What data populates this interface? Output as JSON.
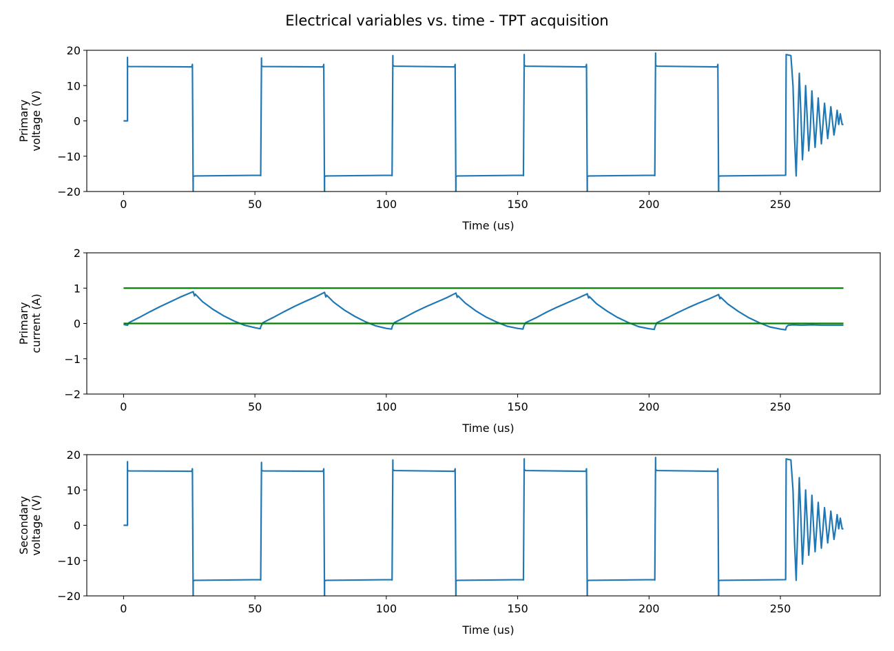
{
  "figure": {
    "title": "Electrical variables vs. time - TPT acquisition"
  },
  "chart_data": [
    {
      "type": "line",
      "xlabel": "Time (us)",
      "ylabel_lines": [
        "Primary",
        "voltage (V)"
      ],
      "xlim": [
        -14,
        288
      ],
      "ylim": [
        -20,
        20
      ],
      "xticks": [
        0,
        50,
        100,
        150,
        200,
        250
      ],
      "yticks": [
        -20,
        -10,
        0,
        10,
        20
      ],
      "grid": false,
      "series": [
        {
          "color": "#1f77b4",
          "x": [
            0,
            1.5,
            1.5,
            1.5,
            2,
            26,
            26.2,
            26.5,
            26.5,
            27,
            52,
            52.2,
            52.5,
            52.5,
            53,
            76,
            76.2,
            76.5,
            76.5,
            77,
            102,
            102.2,
            102.5,
            102.5,
            103,
            126,
            126.2,
            126.5,
            126.5,
            127,
            152,
            152.2,
            152.5,
            152.5,
            153,
            176,
            176.2,
            176.5,
            176.5,
            177,
            202,
            202.2,
            202.5,
            202.5,
            203,
            226,
            226.2,
            226.5,
            226.5,
            227,
            252,
            252.2,
            254,
            254.8,
            255.4,
            256,
            256.6,
            257.2,
            257.8,
            258.4,
            259,
            259.6,
            260.2,
            260.8,
            261.4,
            262,
            262.6,
            263.2,
            263.8,
            264.4,
            265,
            265.6,
            266.2,
            266.8,
            267.4,
            268,
            268.6,
            269.2,
            269.8,
            270.4,
            271,
            271.6,
            272.2,
            272.8,
            273.5,
            274
          ],
          "y": [
            0,
            0,
            18,
            15.5,
            15.4,
            15.3,
            16,
            -22,
            -15.8,
            -15.6,
            -15.4,
            -15.5,
            17.8,
            15.6,
            15.4,
            15.3,
            16,
            -22,
            -15.8,
            -15.6,
            -15.4,
            -15.5,
            18.5,
            15.8,
            15.5,
            15.3,
            16,
            -22,
            -15.8,
            -15.6,
            -15.4,
            -15.5,
            18.8,
            15.8,
            15.5,
            15.3,
            16,
            -22,
            -15.8,
            -15.6,
            -15.4,
            -15.5,
            19.2,
            15.8,
            15.5,
            15.3,
            16,
            -22,
            -15.8,
            -15.6,
            -15.4,
            18.8,
            18.5,
            10,
            -5,
            -15.6,
            -1,
            13.5,
            2,
            -11,
            -3,
            10,
            1,
            -8.5,
            -2,
            8.5,
            0,
            -7.5,
            -1,
            6.5,
            0,
            -6.5,
            -1,
            5,
            0,
            -5,
            -1,
            4,
            0,
            -4,
            -1,
            3,
            -1,
            2,
            -1,
            -1
          ]
        }
      ]
    },
    {
      "type": "line",
      "xlabel": "Time (us)",
      "ylabel_lines": [
        "Primary",
        "current (A)"
      ],
      "xlim": [
        -14,
        288
      ],
      "ylim": [
        -2,
        2
      ],
      "xticks": [
        0,
        50,
        100,
        150,
        200,
        250
      ],
      "yticks": [
        -2,
        -1,
        0,
        1,
        2
      ],
      "grid": false,
      "series": [
        {
          "color": "#1f77b4",
          "x": [
            0,
            1.5,
            2,
            6,
            10,
            14,
            18,
            22,
            26.5,
            27,
            27.3,
            30,
            34,
            38,
            42,
            46,
            50,
            52,
            52.3,
            53,
            57,
            61,
            65,
            69,
            73,
            76.5,
            77,
            77.3,
            80,
            84,
            88,
            92,
            96,
            100,
            102,
            102.3,
            103,
            107,
            111,
            115,
            119,
            123,
            126.5,
            127,
            127.3,
            130,
            134,
            138,
            142,
            146,
            150,
            152,
            152.3,
            153,
            157,
            161,
            165,
            169,
            173,
            176.5,
            177,
            177.3,
            180,
            184,
            188,
            192,
            196,
            200,
            202,
            202.3,
            203,
            207,
            211,
            215,
            219,
            223,
            226.5,
            227,
            227.3,
            230,
            234,
            238,
            242,
            246,
            250,
            252,
            252.3,
            253,
            255,
            258,
            262,
            266,
            270,
            274
          ],
          "y": [
            -0.03,
            -0.05,
            0.02,
            0.17,
            0.33,
            0.48,
            0.62,
            0.76,
            0.9,
            0.78,
            0.83,
            0.62,
            0.4,
            0.22,
            0.07,
            -0.05,
            -0.12,
            -0.15,
            -0.08,
            0.02,
            0.17,
            0.33,
            0.48,
            0.62,
            0.75,
            0.88,
            0.75,
            0.8,
            0.6,
            0.38,
            0.2,
            0.05,
            -0.07,
            -0.14,
            -0.16,
            -0.08,
            0.02,
            0.17,
            0.33,
            0.47,
            0.6,
            0.73,
            0.86,
            0.74,
            0.78,
            0.58,
            0.36,
            0.18,
            0.04,
            -0.08,
            -0.14,
            -0.16,
            -0.08,
            0.02,
            0.16,
            0.32,
            0.46,
            0.59,
            0.72,
            0.84,
            0.72,
            0.76,
            0.56,
            0.35,
            0.17,
            0.03,
            -0.09,
            -0.15,
            -0.17,
            -0.09,
            0.02,
            0.16,
            0.31,
            0.45,
            0.58,
            0.7,
            0.82,
            0.7,
            0.74,
            0.55,
            0.34,
            0.16,
            0.02,
            -0.1,
            -0.16,
            -0.18,
            -0.1,
            -0.05,
            -0.04,
            -0.05,
            -0.04,
            -0.05,
            -0.05,
            -0.05
          ]
        },
        {
          "color": "#008000",
          "x": [
            0,
            274
          ],
          "y": [
            1,
            1
          ]
        },
        {
          "color": "#008000",
          "x": [
            0,
            274
          ],
          "y": [
            0,
            0
          ]
        }
      ]
    },
    {
      "type": "line",
      "xlabel": "Time (us)",
      "ylabel_lines": [
        "Secondary",
        "voltage (V)"
      ],
      "xlim": [
        -14,
        288
      ],
      "ylim": [
        -20,
        20
      ],
      "xticks": [
        0,
        50,
        100,
        150,
        200,
        250
      ],
      "yticks": [
        -20,
        -10,
        0,
        10,
        20
      ],
      "grid": false,
      "series": [
        {
          "color": "#1f77b4",
          "x": [
            0,
            1.5,
            1.5,
            1.5,
            2,
            26,
            26.2,
            26.5,
            26.5,
            27,
            52,
            52.2,
            52.5,
            52.5,
            53,
            76,
            76.2,
            76.5,
            76.5,
            77,
            102,
            102.2,
            102.5,
            102.5,
            103,
            126,
            126.2,
            126.5,
            126.5,
            127,
            152,
            152.2,
            152.5,
            152.5,
            153,
            176,
            176.2,
            176.5,
            176.5,
            177,
            202,
            202.2,
            202.5,
            202.5,
            203,
            226,
            226.2,
            226.5,
            226.5,
            227,
            252,
            252.2,
            254,
            254.8,
            255.4,
            256,
            256.6,
            257.2,
            257.8,
            258.4,
            259,
            259.6,
            260.2,
            260.8,
            261.4,
            262,
            262.6,
            263.2,
            263.8,
            264.4,
            265,
            265.6,
            266.2,
            266.8,
            267.4,
            268,
            268.6,
            269.2,
            269.8,
            270.4,
            271,
            271.6,
            272.2,
            272.8,
            273.5,
            274
          ],
          "y": [
            0,
            0,
            18,
            15.5,
            15.4,
            15.3,
            16,
            -22,
            -15.8,
            -15.6,
            -15.4,
            -15.5,
            17.8,
            15.6,
            15.4,
            15.3,
            16,
            -22,
            -15.8,
            -15.6,
            -15.4,
            -15.5,
            18.5,
            15.8,
            15.5,
            15.3,
            16,
            -22,
            -15.8,
            -15.6,
            -15.4,
            -15.5,
            18.8,
            15.8,
            15.5,
            15.3,
            16,
            -22,
            -15.8,
            -15.6,
            -15.4,
            -15.5,
            19.2,
            15.8,
            15.5,
            15.3,
            16,
            -22,
            -15.8,
            -15.6,
            -15.4,
            18.8,
            18.5,
            10,
            -5,
            -15.6,
            -1,
            13.5,
            2,
            -11,
            -3,
            10,
            1,
            -8.5,
            -2,
            8.5,
            0,
            -7.5,
            -1,
            6.5,
            0,
            -6.5,
            -1,
            5,
            0,
            -5,
            -1,
            4,
            0,
            -4,
            -1,
            3,
            -1,
            2,
            -1,
            -1
          ]
        }
      ]
    }
  ]
}
